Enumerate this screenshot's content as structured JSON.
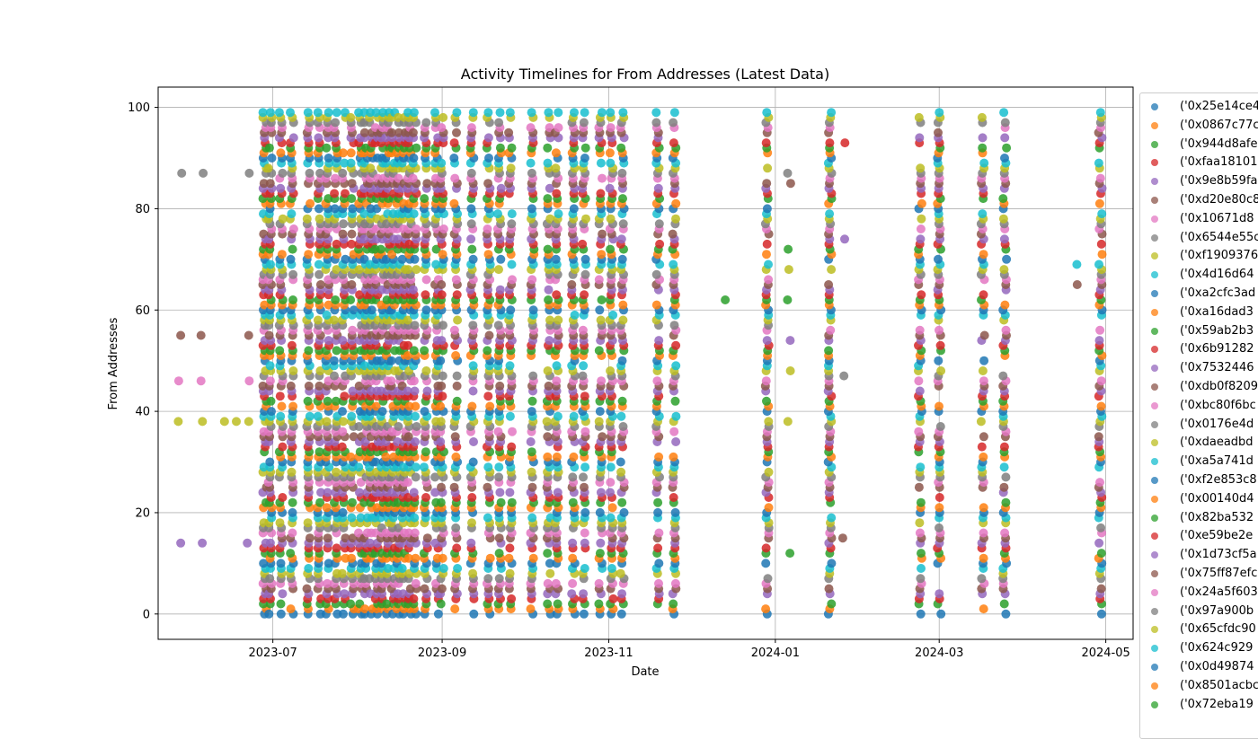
{
  "chart_data": {
    "type": "scatter",
    "title": "Activity Timelines for From Addresses (Latest Data)",
    "xlabel": "Date",
    "ylabel": "From Addresses",
    "xlim": [
      "2023-05-20",
      "2024-05-11"
    ],
    "ylim": [
      -5,
      104
    ],
    "xticks": [
      {
        "value": "2023-07-01",
        "label": "2023-07"
      },
      {
        "value": "2023-09-01",
        "label": "2023-09"
      },
      {
        "value": "2023-11-01",
        "label": "2023-11"
      },
      {
        "value": "2024-01-01",
        "label": "2024-01"
      },
      {
        "value": "2024-03-01",
        "label": "2024-03"
      },
      {
        "value": "2024-05-01",
        "label": "2024-05"
      }
    ],
    "yticks": [
      0,
      20,
      40,
      60,
      80,
      100
    ],
    "grid": true,
    "legend_position": "outside-right",
    "palette": [
      "#1f77b4",
      "#ff7f0e",
      "#2ca02c",
      "#d62728",
      "#9467bd",
      "#8c564b",
      "#e377c2",
      "#7f7f7f",
      "#bcbd22",
      "#17becf"
    ],
    "legend": [
      "('0x25e14ce4",
      "('0x0867c77c",
      "('0x944d8afe",
      "('0xfaa18101",
      "('0x9e8b59fa",
      "('0xd20e80c8",
      "('0x10671d8",
      "('0x6544e55c",
      "('0xf1909376",
      "('0x4d16d64",
      "('0xa2cfc3ad",
      "('0xa16dad3",
      "('0x59ab2b3",
      "('0x6b91282",
      "('0x7532446",
      "('0xdb0f8209",
      "('0xbc80f6bc",
      "('0x0176e4d",
      "('0xdaeadbd",
      "('0xa5a741d",
      "('0xf2e853c8",
      "('0x00140d4",
      "('0x82ba532",
      "('0xe59be2e",
      "('0x1d73cf5a",
      "('0x75ff87efc",
      "('0x24a5f603",
      "('0x97a900b",
      "('0x65cfdc90",
      "('0x624c929",
      "('0x0d49874",
      "('0x8501acbc",
      "('0x72eba19"
    ],
    "activity_dates": [
      "2023-05-28",
      "2023-06-05",
      "2023-06-13",
      "2023-06-17",
      "2023-06-22",
      "2023-06-28",
      "2023-06-30",
      "2023-07-04",
      "2023-07-08",
      "2023-07-14",
      "2023-07-18",
      "2023-07-21",
      "2023-07-24",
      "2023-07-27",
      "2023-07-30",
      "2023-08-02",
      "2023-08-04",
      "2023-08-06",
      "2023-08-08",
      "2023-08-10",
      "2023-08-12",
      "2023-08-14",
      "2023-08-16",
      "2023-08-18",
      "2023-08-20",
      "2023-08-22",
      "2023-08-26",
      "2023-08-30",
      "2023-09-01",
      "2023-09-06",
      "2023-09-12",
      "2023-09-18",
      "2023-09-22",
      "2023-09-26",
      "2023-10-04",
      "2023-10-10",
      "2023-10-13",
      "2023-10-19",
      "2023-10-23",
      "2023-10-29",
      "2023-11-02",
      "2023-11-06",
      "2023-11-19",
      "2023-11-25",
      "2023-12-14",
      "2023-12-29",
      "2024-01-06",
      "2024-01-21",
      "2024-01-26",
      "2024-02-23",
      "2024-03-01",
      "2024-03-17",
      "2024-03-25",
      "2024-04-21",
      "2024-04-29"
    ],
    "points": [
      {
        "date": "2023-05-28",
        "addresses": [
          14,
          38,
          46,
          55,
          87
        ]
      },
      {
        "date": "2023-06-05",
        "addresses": [
          14,
          38,
          46,
          55,
          87
        ]
      },
      {
        "date": "2023-06-13",
        "addresses": [
          38
        ]
      },
      {
        "date": "2023-06-17",
        "addresses": [
          38
        ]
      },
      {
        "date": "2023-06-22",
        "addresses": [
          14,
          38,
          46,
          55,
          87
        ]
      },
      {
        "date": "2023-12-14",
        "addresses": [
          62
        ]
      },
      {
        "date": "2024-01-06",
        "addresses": [
          12,
          38,
          48,
          54,
          62,
          68,
          72,
          85,
          87
        ]
      },
      {
        "date": "2024-01-26",
        "addresses": [
          15,
          47,
          74,
          93
        ]
      },
      {
        "date": "2024-04-21",
        "addresses": [
          65,
          69
        ]
      }
    ]
  }
}
